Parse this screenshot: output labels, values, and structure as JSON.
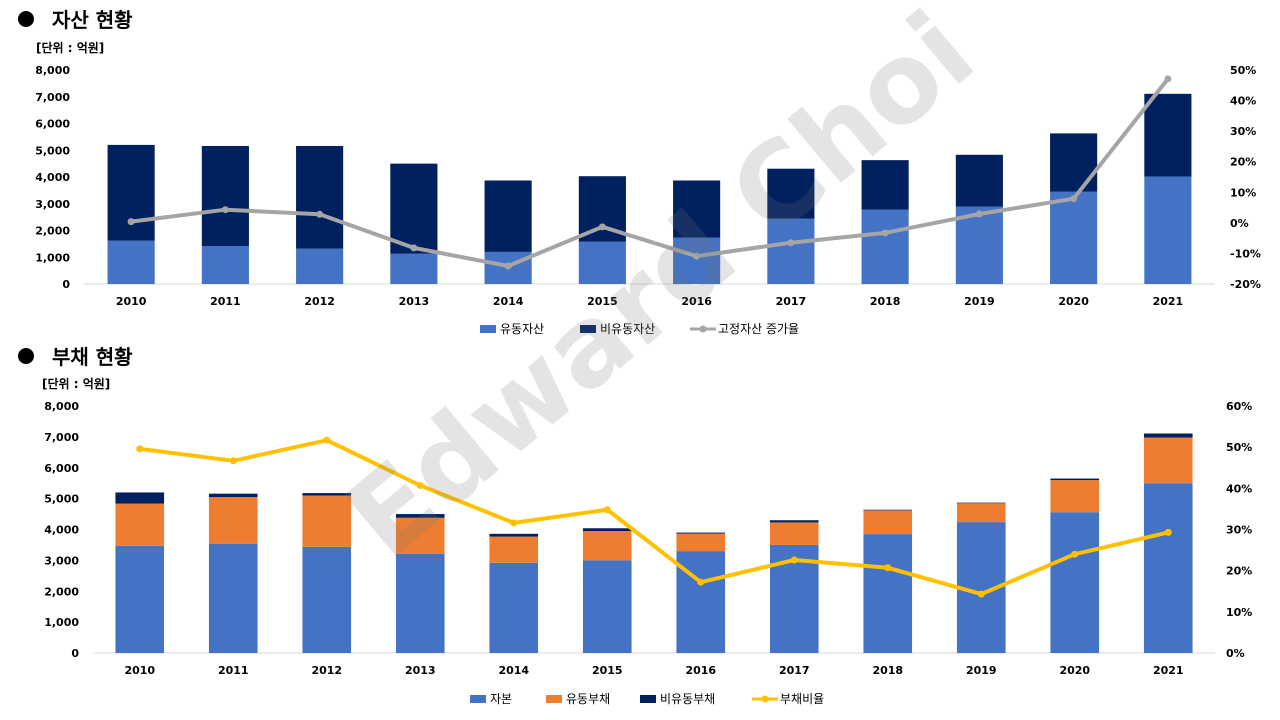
{
  "sections": {
    "assets_title": "자산 현황",
    "liabilities_title": "부채 현황"
  },
  "watermark": "Edward Choi",
  "colors": {
    "blue": "#4472C4",
    "navy": "#002060",
    "orange": "#ED7D31",
    "gray": "#A5A5A5",
    "yellow": "#FFC000"
  },
  "chart_data": [
    {
      "type": "bar",
      "stacked": true,
      "title": "자산 현황",
      "unit_label": "[단위 : 억원]",
      "categories": [
        "2010",
        "2011",
        "2012",
        "2013",
        "2014",
        "2015",
        "2016",
        "2017",
        "2018",
        "2019",
        "2020",
        "2021"
      ],
      "series": [
        {
          "name": "유동자산",
          "values": [
            1620,
            1420,
            1320,
            1130,
            1200,
            1580,
            1730,
            2440,
            2780,
            2890,
            3450,
            4020
          ]
        },
        {
          "name": "비유동자산",
          "values": [
            3580,
            3740,
            3840,
            3370,
            2670,
            2450,
            2140,
            1870,
            1850,
            1940,
            2180,
            3090
          ]
        }
      ],
      "line_series": {
        "name": "고정자산 증가율",
        "axis": "right",
        "values": [
          0.4,
          4.3,
          2.8,
          -8.2,
          -14.1,
          -1.3,
          -10.9,
          -6.5,
          -3.3,
          2.9,
          7.9,
          47.1
        ]
      },
      "y_left": {
        "min": 0,
        "max": 8000,
        "ticks": [
          "0",
          "1,000",
          "2,000",
          "3,000",
          "4,000",
          "5,000",
          "6,000",
          "7,000",
          "8,000"
        ]
      },
      "y_right": {
        "min": -20,
        "max": 50,
        "ticks": [
          "-20%",
          "-10%",
          "0%",
          "10%",
          "20%",
          "30%",
          "40%",
          "50%"
        ]
      },
      "legend": [
        "유동자산",
        "비유동자산",
        "고정자산 증가율"
      ],
      "legend_position": "bottom"
    },
    {
      "type": "bar",
      "stacked": true,
      "title": "부채 현황",
      "unit_label": "[단위 : 억원]",
      "categories": [
        "2010",
        "2011",
        "2012",
        "2013",
        "2014",
        "2015",
        "2016",
        "2017",
        "2018",
        "2019",
        "2020",
        "2021"
      ],
      "series": [
        {
          "name": "자본",
          "values": [
            3470,
            3540,
            3440,
            3210,
            2920,
            3000,
            3300,
            3500,
            3850,
            4240,
            4560,
            5500
          ]
        },
        {
          "name": "유동부채",
          "values": [
            1370,
            1510,
            1660,
            1170,
            850,
            950,
            570,
            730,
            770,
            610,
            1040,
            1480
          ]
        },
        {
          "name": "비유동부채",
          "values": [
            360,
            110,
            80,
            120,
            90,
            90,
            30,
            70,
            20,
            20,
            50,
            130
          ]
        }
      ],
      "line_series": {
        "name": "부채비율",
        "axis": "right",
        "values": [
          49.6,
          46.7,
          51.7,
          40.7,
          31.6,
          34.8,
          17.2,
          22.6,
          20.7,
          14.3,
          24.0,
          29.3
        ]
      },
      "y_left": {
        "min": 0,
        "max": 8000,
        "ticks": [
          "0",
          "1,000",
          "2,000",
          "3,000",
          "4,000",
          "5,000",
          "6,000",
          "7,000",
          "8,000"
        ]
      },
      "y_right": {
        "min": 0,
        "max": 60,
        "ticks": [
          "0%",
          "10%",
          "20%",
          "30%",
          "40%",
          "50%",
          "60%"
        ]
      },
      "legend": [
        "자본",
        "유동부채",
        "비유동부채",
        "부채비율"
      ],
      "legend_position": "bottom"
    }
  ]
}
